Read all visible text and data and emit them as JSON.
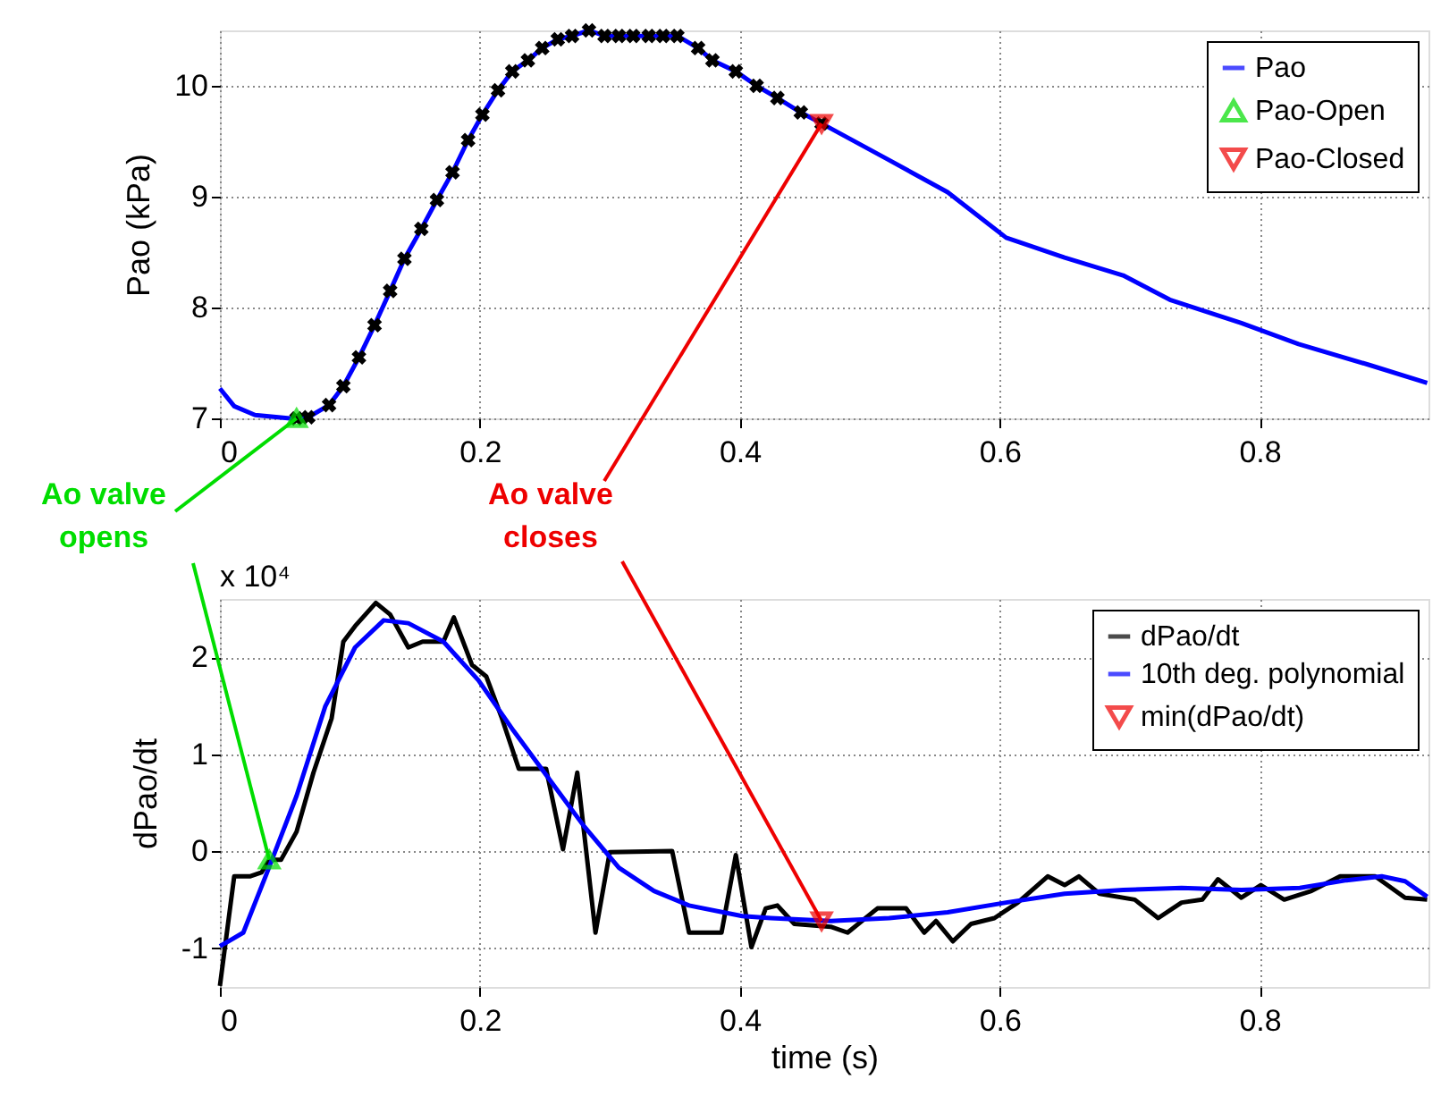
{
  "chart_data": [
    {
      "type": "line",
      "ylabel": "Pao (kPa)",
      "xlim": [
        0,
        0.93
      ],
      "xticks": [
        0,
        0.2,
        0.4,
        0.6,
        0.8
      ],
      "ylim": [
        7,
        10.5
      ],
      "yticks": [
        7,
        8,
        9,
        10
      ],
      "grid": true,
      "legend": "top right",
      "line_style": "solid",
      "series": [
        {
          "name": "Pao",
          "color": "#0000ff",
          "x": [
            0,
            0.011,
            0.027,
            0.054,
            0.068,
            0.084,
            0.095,
            0.107,
            0.119,
            0.131,
            0.142,
            0.155,
            0.167,
            0.179,
            0.191,
            0.202,
            0.214,
            0.225,
            0.237,
            0.248,
            0.26,
            0.271,
            0.284,
            0.296,
            0.352,
            0.368,
            0.379,
            0.397,
            0.413,
            0.429,
            0.447,
            0.463,
            0.515,
            0.56,
            0.605,
            0.65,
            0.695,
            0.731,
            0.786,
            0.83,
            0.885,
            0.929
          ],
          "values": [
            7.27,
            7.11,
            7.03,
            7.0,
            7.01,
            7.12,
            7.29,
            7.55,
            7.84,
            8.15,
            8.44,
            8.71,
            8.97,
            9.22,
            9.51,
            9.74,
            9.96,
            10.13,
            10.23,
            10.34,
            10.42,
            10.45,
            10.5,
            10.45,
            10.45,
            10.34,
            10.23,
            10.13,
            10.0,
            9.89,
            9.76,
            9.66,
            9.33,
            9.04,
            8.63,
            8.45,
            8.29,
            8.07,
            7.86,
            7.67,
            7.48,
            7.32
          ]
        },
        {
          "type": "scatter",
          "marker": "cross",
          "color": "#000000",
          "x": [
            0.059,
            0.068,
            0.084,
            0.095,
            0.107,
            0.119,
            0.131,
            0.142,
            0.155,
            0.167,
            0.179,
            0.191,
            0.202,
            0.214,
            0.225,
            0.237,
            0.248,
            0.26,
            0.271,
            0.284,
            0.296,
            0.307,
            0.318,
            0.33,
            0.341,
            0.352,
            0.368,
            0.379,
            0.397,
            0.413,
            0.429,
            0.447,
            0.463
          ],
          "values": [
            7.0,
            7.01,
            7.12,
            7.29,
            7.55,
            7.84,
            8.15,
            8.44,
            8.71,
            8.97,
            9.22,
            9.51,
            9.74,
            9.96,
            10.13,
            10.23,
            10.34,
            10.42,
            10.45,
            10.5,
            10.45,
            10.45,
            10.45,
            10.45,
            10.45,
            10.45,
            10.34,
            10.23,
            10.13,
            10.0,
            9.89,
            9.76,
            9.66
          ]
        },
        {
          "name": "Pao-Open",
          "type": "scatter",
          "marker": "triangle",
          "color": "#00dd00",
          "x": [
            0.059
          ],
          "values": [
            7.0
          ]
        },
        {
          "name": "Pao-Closed",
          "type": "scatter",
          "marker": "triangle-down",
          "color": "#ee0000",
          "x": [
            0.463
          ],
          "values": [
            9.66
          ]
        }
      ]
    },
    {
      "type": "line",
      "xlabel": "time (s)",
      "ylabel": "dPao/dt",
      "xlim": [
        0,
        0.93
      ],
      "xticks": [
        0,
        0.2,
        0.4,
        0.6,
        0.8
      ],
      "ylim": [
        -1.4,
        2.6
      ],
      "yticks": [
        -1,
        0,
        1,
        2
      ],
      "grid": true,
      "legend": "top right",
      "line_style": "solid",
      "annotations": [
        {
          "text": "Ao valve opens",
          "x": 0.038,
          "y": -0.09
        },
        {
          "text": "Ao valve closes",
          "x": 0.463,
          "y": -0.72
        },
        "x 10⁴"
      ],
      "series": [
        {
          "name": "dPao/dt",
          "color": "#000000",
          "x": [
            0,
            0.011,
            0.023,
            0.032,
            0.038,
            0.047,
            0.059,
            0.072,
            0.086,
            0.095,
            0.104,
            0.12,
            0.131,
            0.145,
            0.156,
            0.172,
            0.18,
            0.194,
            0.205,
            0.217,
            0.23,
            0.251,
            0.264,
            0.275,
            0.289,
            0.3,
            0.348,
            0.361,
            0.386,
            0.397,
            0.409,
            0.42,
            0.429,
            0.442,
            0.47,
            0.483,
            0.506,
            0.528,
            0.542,
            0.551,
            0.564,
            0.578,
            0.596,
            0.614,
            0.637,
            0.65,
            0.661,
            0.677,
            0.704,
            0.722,
            0.74,
            0.756,
            0.768,
            0.786,
            0.801,
            0.819,
            0.84,
            0.862,
            0.889,
            0.912,
            0.929
          ],
          "values": [
            -1.39,
            -0.26,
            -0.26,
            -0.22,
            -0.09,
            -0.09,
            0.2,
            0.81,
            1.37,
            2.16,
            2.32,
            2.56,
            2.44,
            2.1,
            2.16,
            2.16,
            2.41,
            1.92,
            1.8,
            1.37,
            0.85,
            0.85,
            0.02,
            0.81,
            -0.84,
            -0.01,
            0,
            -0.84,
            -0.84,
            -0.04,
            -0.99,
            -0.59,
            -0.56,
            -0.75,
            -0.78,
            -0.84,
            -0.59,
            -0.59,
            -0.84,
            -0.72,
            -0.93,
            -0.75,
            -0.69,
            -0.53,
            -0.26,
            -0.35,
            -0.26,
            -0.44,
            -0.5,
            -0.69,
            -0.53,
            -0.5,
            -0.29,
            -0.48,
            -0.35,
            -0.5,
            -0.41,
            -0.26,
            -0.26,
            -0.48,
            -0.5
          ]
        },
        {
          "name": "10th deg. polynomial",
          "color": "#0000ff",
          "x": [
            0,
            0.018,
            0.036,
            0.059,
            0.081,
            0.104,
            0.126,
            0.145,
            0.172,
            0.199,
            0.226,
            0.253,
            0.28,
            0.307,
            0.334,
            0.361,
            0.402,
            0.424,
            0.47,
            0.515,
            0.56,
            0.605,
            0.65,
            0.695,
            0.74,
            0.786,
            0.831,
            0.867,
            0.894,
            0.912,
            0.929
          ],
          "values": [
            -0.98,
            -0.84,
            -0.23,
            0.57,
            1.49,
            2.1,
            2.38,
            2.35,
            2.16,
            1.76,
            1.24,
            0.75,
            0.26,
            -0.17,
            -0.41,
            -0.56,
            -0.67,
            -0.69,
            -0.72,
            -0.69,
            -0.63,
            -0.53,
            -0.44,
            -0.4,
            -0.38,
            -0.4,
            -0.38,
            -0.3,
            -0.26,
            -0.31,
            -0.47
          ]
        },
        {
          "name": "min(dPao/dt)",
          "type": "scatter",
          "marker": "triangle-down",
          "color": "#ee0000",
          "x": [
            0.463
          ],
          "values": [
            -0.72
          ]
        },
        {
          "type": "scatter",
          "marker": "triangle",
          "color": "#00dd00",
          "x": [
            0.038
          ],
          "values": [
            -0.09
          ]
        }
      ]
    }
  ]
}
